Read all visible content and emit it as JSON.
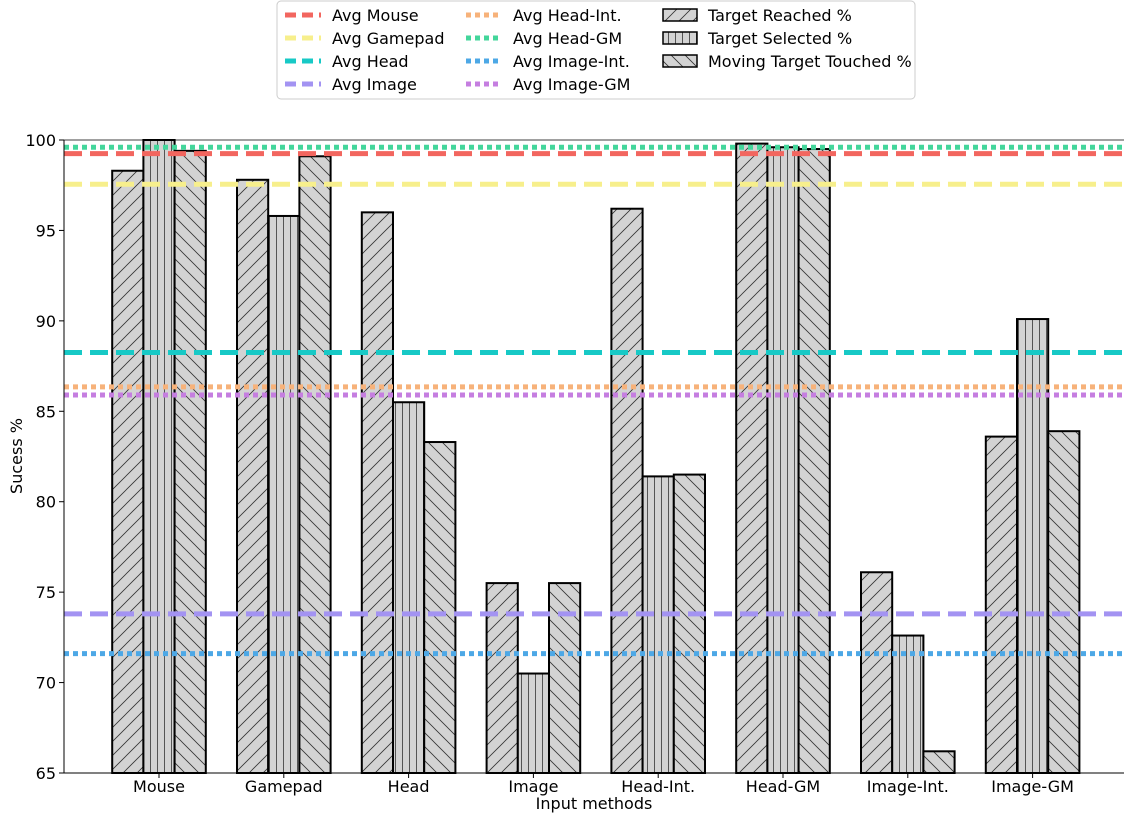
{
  "chart_data": {
    "type": "bar",
    "xlabel": "Input methods",
    "ylabel": "Sucess %",
    "ylim": [
      65,
      100
    ],
    "yticks": [
      65,
      70,
      75,
      80,
      85,
      90,
      95,
      100
    ],
    "grid": false,
    "legend_position": "top-center",
    "categories": [
      "Mouse",
      "Gamepad",
      "Head",
      "Image",
      "Head-Int.",
      "Head-GM",
      "Image-Int.",
      "Image-GM"
    ],
    "series": [
      {
        "name": "Target Reached %",
        "hatch": "diagonal-forward",
        "color": "#d3d3d3",
        "values": [
          98.3,
          97.8,
          96.0,
          75.5,
          96.2,
          99.8,
          76.1,
          83.6
        ]
      },
      {
        "name": "Target Selected %",
        "hatch": "vertical",
        "color": "#d3d3d3",
        "values": [
          100.0,
          95.8,
          85.5,
          70.5,
          81.4,
          99.6,
          72.6,
          90.1
        ]
      },
      {
        "name": "Moving Target Touched %",
        "hatch": "diagonal-back",
        "color": "#d3d3d3",
        "values": [
          99.4,
          99.1,
          83.3,
          75.5,
          81.5,
          99.5,
          66.2,
          83.9
        ]
      }
    ],
    "reference_lines": [
      {
        "name": "Avg Mouse",
        "value": 99.25,
        "color": "#f2665f",
        "style": "dashed"
      },
      {
        "name": "Avg Gamepad",
        "value": 97.55,
        "color": "#f7ef8c",
        "style": "dashed"
      },
      {
        "name": "Avg Head",
        "value": 88.25,
        "color": "#17c9c6",
        "style": "dashed"
      },
      {
        "name": "Avg Image",
        "value": 73.8,
        "color": "#a393f2",
        "style": "dashed"
      },
      {
        "name": "Avg Head-Int.",
        "value": 86.35,
        "color": "#f7b27a",
        "style": "dotted"
      },
      {
        "name": "Avg Head-GM",
        "value": 99.6,
        "color": "#43d69b",
        "style": "dotted"
      },
      {
        "name": "Avg Image-Int.",
        "value": 71.6,
        "color": "#4da8e6",
        "style": "dotted"
      },
      {
        "name": "Avg Image-GM",
        "value": 85.9,
        "color": "#c57ee0",
        "style": "dotted"
      }
    ]
  }
}
